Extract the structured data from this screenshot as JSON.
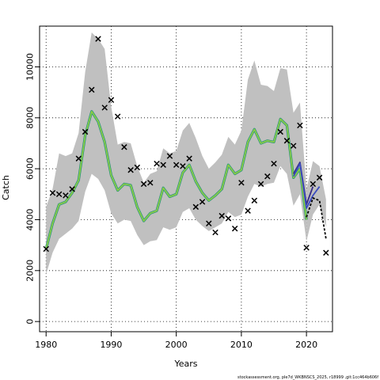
{
  "chart_data": {
    "type": "line",
    "xlabel": "Years",
    "ylabel": "Catch",
    "xlim": [
      1979,
      2024
    ],
    "ylim": [
      -400,
      11600
    ],
    "grid": true,
    "x_ticks": [
      1980,
      1990,
      2000,
      2010,
      2020
    ],
    "y_ticks": [
      0,
      2000,
      4000,
      6000,
      8000,
      10000
    ],
    "colors": {
      "ribbon": "#c0c0c0",
      "fit_outer": "#2e8b57",
      "fit_inner": "#9acd32",
      "retro_teal": "#2ab7b0",
      "retro_blue": "#3b4cc0",
      "retro_navy": "#352a86",
      "forecast": "#000000",
      "observed": "#000000"
    },
    "series": [
      {
        "name": "",
        "kind": "ribbon",
        "x": [
          1980,
          1981,
          1982,
          1983,
          1984,
          1985,
          1986,
          1987,
          1988,
          1989,
          1990,
          1991,
          1992,
          1993,
          1994,
          1995,
          1996,
          1997,
          1998,
          1999,
          2000,
          2001,
          2002,
          2003,
          2004,
          2005,
          2006,
          2007,
          2008,
          2009,
          2010,
          2011,
          2012,
          2013,
          2014,
          2015,
          2016,
          2017,
          2018,
          2019,
          2020
        ],
        "lower": [
          1850,
          2700,
          3250,
          3450,
          3650,
          3950,
          5100,
          5800,
          5600,
          5150,
          4250,
          3850,
          4000,
          3950,
          3400,
          3000,
          3150,
          3200,
          3700,
          3600,
          3700,
          4300,
          4450,
          4000,
          3750,
          3550,
          3700,
          3850,
          4300,
          4100,
          4200,
          4900,
          5400,
          5300,
          5400,
          5450,
          6100,
          5800,
          4550,
          5000,
          3150
        ],
        "upper": [
          4500,
          5200,
          6600,
          6500,
          6600,
          7400,
          9800,
          11350,
          11100,
          10700,
          8450,
          6950,
          7050,
          7000,
          6100,
          5450,
          5800,
          5900,
          6800,
          6600,
          6700,
          7500,
          7800,
          7200,
          6500,
          6000,
          6250,
          6550,
          7250,
          6950,
          7500,
          9500,
          10250,
          9300,
          9250,
          9050,
          9950,
          9900,
          8200,
          8600,
          5200
        ]
      },
      {
        "name": "",
        "kind": "fit",
        "x": [
          1980,
          1981,
          1982,
          1983,
          1984,
          1985,
          1986,
          1987,
          1988,
          1989,
          1990,
          1991,
          1992,
          1993,
          1994,
          1995,
          1996,
          1997,
          1998,
          1999,
          2000,
          2001,
          2002,
          2003,
          2004,
          2005,
          2006,
          2007,
          2008,
          2009,
          2010,
          2011,
          2012,
          2013,
          2014,
          2015,
          2016,
          2017,
          2018,
          2019,
          2020
        ],
        "y": [
          2850,
          3850,
          4600,
          4700,
          5050,
          5550,
          7300,
          8250,
          7850,
          7050,
          5750,
          5150,
          5400,
          5350,
          4500,
          3950,
          4250,
          4350,
          5250,
          4900,
          5000,
          5850,
          6150,
          5500,
          5050,
          4750,
          4950,
          5200,
          6150,
          5800,
          5950,
          7050,
          7550,
          7000,
          7100,
          7050,
          7950,
          7700,
          5650,
          6000,
          4000
        ]
      },
      {
        "name": "",
        "kind": "retro",
        "x": [
          2018,
          2019,
          2020,
          2021
        ],
        "y": [
          5800,
          6250,
          4600,
          5300
        ]
      },
      {
        "name": "",
        "kind": "retro",
        "x": [
          2018,
          2019,
          2020,
          2021,
          2022
        ],
        "y": [
          5700,
          6200,
          4450,
          4950,
          5300
        ]
      },
      {
        "name": "",
        "kind": "forecast",
        "x": [
          2020,
          2021,
          2022,
          2023
        ],
        "y": [
          4100,
          4850,
          4750,
          3250
        ]
      },
      {
        "name": "",
        "kind": "observed",
        "x": [
          1980,
          1981,
          1982,
          1983,
          1984,
          1985,
          1986,
          1987,
          1988,
          1989,
          1990,
          1991,
          1992,
          1993,
          1994,
          1995,
          1996,
          1997,
          1998,
          1999,
          2000,
          2001,
          2002,
          2003,
          2004,
          2005,
          2006,
          2007,
          2008,
          2009,
          2010,
          2011,
          2012,
          2013,
          2014,
          2015,
          2016,
          2017,
          2018,
          2019,
          2020,
          2021,
          2022,
          2023
        ],
        "y": [
          2850,
          5050,
          5000,
          4950,
          5200,
          6400,
          7450,
          9100,
          11100,
          8400,
          8700,
          8050,
          6850,
          5950,
          6050,
          5400,
          5450,
          6200,
          6150,
          6500,
          6150,
          6100,
          6400,
          4500,
          4700,
          3850,
          3500,
          4150,
          4050,
          3650,
          5450,
          4350,
          4750,
          5400,
          5700,
          6200,
          7450,
          7100,
          6900,
          7700,
          2900,
          5400,
          5650,
          2700
        ]
      }
    ]
  },
  "footer": "stockassessment.org, ple7d_WKBNSCS_2025, r18999 ,git:1cc464b606f"
}
